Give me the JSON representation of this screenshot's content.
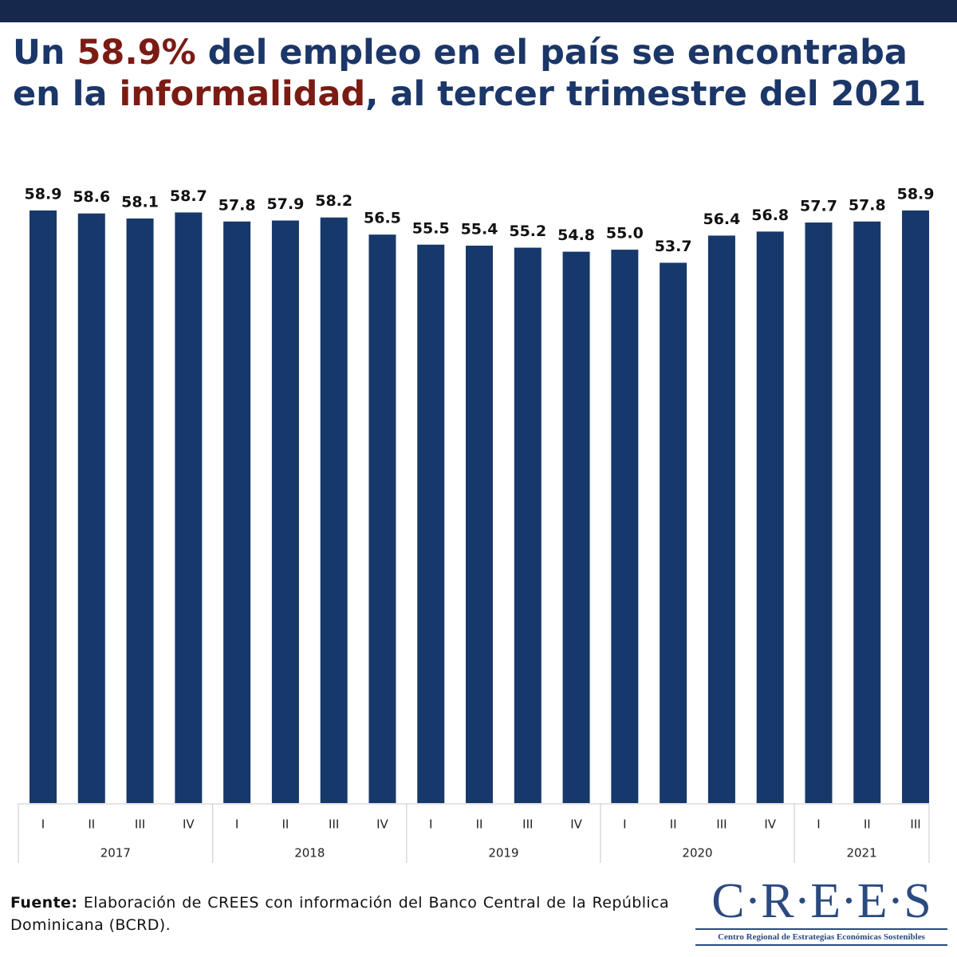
{
  "chart_data": {
    "type": "bar",
    "title_parts": [
      {
        "text": "Un ",
        "color": "#1b3668"
      },
      {
        "text": "58.9%",
        "color": "#7a1b14"
      },
      {
        "text": " del empleo en el país se encontraba en la ",
        "color": "#1b3668"
      },
      {
        "text": "informalidad",
        "color": "#7a1b14"
      },
      {
        "text": ", al tercer trimestre del 2021",
        "color": "#1b3668"
      }
    ],
    "groups": [
      {
        "name": "2017",
        "categories": [
          "I",
          "II",
          "III",
          "IV"
        ]
      },
      {
        "name": "2018",
        "categories": [
          "I",
          "II",
          "III",
          "IV"
        ]
      },
      {
        "name": "2019",
        "categories": [
          "I",
          "II",
          "III",
          "IV"
        ]
      },
      {
        "name": "2020",
        "categories": [
          "I",
          "II",
          "III",
          "IV"
        ]
      },
      {
        "name": "2021",
        "categories": [
          "I",
          "II",
          "III"
        ]
      }
    ],
    "values": [
      58.9,
      58.6,
      58.1,
      58.7,
      57.8,
      57.9,
      58.2,
      56.5,
      55.5,
      55.4,
      55.2,
      54.8,
      55.0,
      53.7,
      56.4,
      56.8,
      57.7,
      57.8,
      58.9
    ],
    "value_labels": [
      "58.9",
      "58.6",
      "58.1",
      "58.7",
      "57.8",
      "57.9",
      "58.2",
      "56.5",
      "55.5",
      "55.4",
      "55.2",
      "54.8",
      "55.0",
      "53.7",
      "56.4",
      "56.8",
      "57.7",
      "57.8",
      "58.9"
    ],
    "color": "#17386b",
    "ylim": [
      0,
      60
    ]
  },
  "source": {
    "label": "Fuente:",
    "text": " Elaboración de CREES con información del Banco Central de la República Dominicana (BCRD)."
  },
  "logo": {
    "name": "C·R·E·E·S",
    "tagline": "Centro Regional de Estrategias Económicas Sostenibles"
  }
}
